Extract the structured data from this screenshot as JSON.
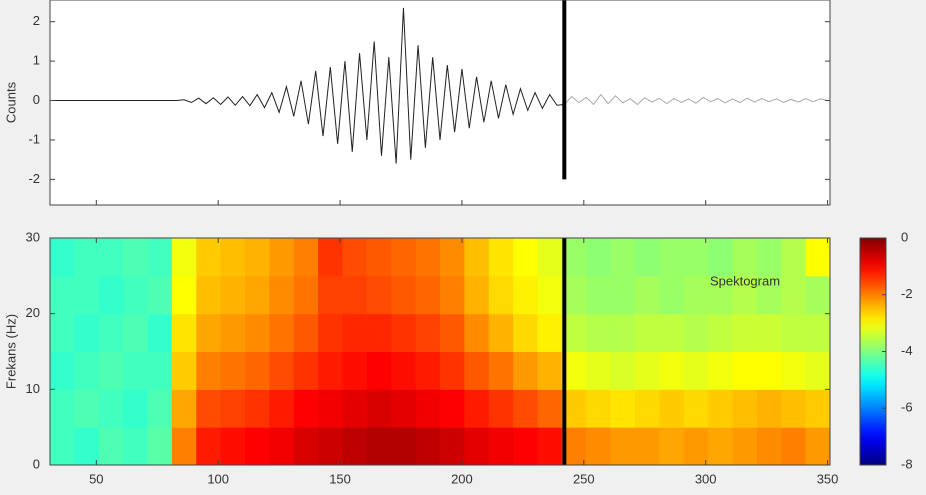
{
  "chart_data": [
    {
      "type": "line",
      "ylabel": "Counts",
      "x": [
        32,
        35,
        38,
        41,
        44,
        47,
        50,
        53,
        56,
        59,
        62,
        65,
        68,
        71,
        74,
        77,
        80,
        83,
        86,
        89,
        92,
        95,
        98,
        101,
        104,
        107,
        110,
        113,
        116,
        119,
        122,
        125,
        128,
        131,
        134,
        137,
        140,
        143,
        146,
        149,
        152,
        155,
        158,
        161,
        164,
        167,
        170,
        173,
        176,
        179,
        182,
        185,
        188,
        191,
        194,
        197,
        200,
        203,
        206,
        209,
        212,
        215,
        218,
        221,
        224,
        227,
        230,
        233,
        236,
        239,
        242,
        245,
        248,
        251,
        254,
        257,
        260,
        263,
        266,
        269,
        272,
        275,
        278,
        281,
        284,
        287,
        290,
        293,
        296,
        299,
        302,
        305,
        308,
        311,
        314,
        317,
        320,
        323,
        326,
        329,
        332,
        335,
        338,
        341,
        344,
        347,
        350
      ],
      "series": [
        {
          "color": "#222222",
          "values": [
            0,
            0,
            0,
            0,
            0,
            0,
            0,
            0,
            0,
            0,
            0,
            0,
            0,
            0,
            0,
            0,
            0,
            0,
            0.02,
            -0.05,
            0.06,
            -0.08,
            0.07,
            -0.1,
            0.09,
            -0.12,
            0.1,
            -0.13,
            0.15,
            -0.18,
            0.2,
            -0.3,
            0.35,
            -0.4,
            0.5,
            -0.6,
            0.75,
            -0.9,
            0.85,
            -1.1,
            1.0,
            -1.3,
            1.2,
            -1.0,
            1.5,
            -1.4,
            1.1,
            -1.6,
            2.35,
            -1.5,
            1.4,
            -1.2,
            1.1,
            -1.0,
            0.9,
            -0.8,
            0.8,
            -0.7,
            0.6,
            -0.55,
            0.5,
            -0.45,
            0.4,
            -0.35,
            0.3,
            -0.25,
            0.2,
            -0.2,
            0.15,
            -0.12,
            -0.1,
            null,
            null,
            null,
            null,
            null,
            null,
            null,
            null,
            null,
            null,
            null,
            null,
            null,
            null,
            null,
            null,
            null,
            null,
            null,
            null,
            null,
            null,
            null,
            null,
            null,
            null,
            null,
            null,
            null,
            null,
            null,
            null,
            null,
            null,
            null,
            null
          ]
        },
        {
          "color": "#aaaaaa",
          "values": [
            null,
            null,
            null,
            null,
            null,
            null,
            null,
            null,
            null,
            null,
            null,
            null,
            null,
            null,
            null,
            null,
            null,
            null,
            null,
            null,
            null,
            null,
            null,
            null,
            null,
            null,
            null,
            null,
            null,
            null,
            null,
            null,
            null,
            null,
            null,
            null,
            null,
            null,
            null,
            null,
            null,
            null,
            null,
            null,
            null,
            null,
            null,
            null,
            null,
            null,
            null,
            null,
            null,
            null,
            null,
            null,
            null,
            null,
            null,
            null,
            null,
            null,
            null,
            null,
            null,
            null,
            null,
            null,
            null,
            null,
            -0.1,
            0.1,
            -0.05,
            0.08,
            -0.1,
            0.15,
            -0.08,
            0.12,
            -0.06,
            0.05,
            -0.1,
            0.07,
            -0.04,
            0.06,
            -0.08,
            0.05,
            -0.05,
            0.04,
            -0.07,
            0.08,
            -0.03,
            0.05,
            -0.06,
            0.04,
            -0.05,
            0.06,
            -0.04,
            0.05,
            -0.03,
            0.04,
            -0.05,
            0.03,
            -0.04,
            0.05,
            -0.03,
            0.04,
            0.0
          ]
        }
      ],
      "xlim": [
        31,
        351
      ],
      "xticks": [
        50,
        100,
        150,
        200,
        250,
        300,
        350
      ],
      "ylim": [
        -2.65,
        2.55
      ],
      "yticks": [
        -2,
        -1,
        0,
        1,
        2
      ],
      "vline": {
        "x": 242,
        "ymin": -2,
        "color": "#000000"
      }
    },
    {
      "type": "heatmap",
      "ylabel": "Frekans (Hz)",
      "annotation": "Spektogram",
      "colormap": "jet",
      "xbins": [
        31,
        41,
        51,
        61,
        71,
        81,
        91,
        101,
        111,
        121,
        131,
        141,
        151,
        161,
        171,
        181,
        191,
        201,
        211,
        221,
        231,
        241,
        251,
        261,
        271,
        281,
        291,
        301,
        311,
        321,
        331,
        341,
        351
      ],
      "ybins": [
        0,
        5,
        10,
        15,
        20,
        25,
        30
      ],
      "z": [
        [
          -4.5,
          -4.6,
          -4.4,
          -4.5,
          -4.3,
          -2.0,
          -1.2,
          -1.1,
          -1.0,
          -0.9,
          -0.7,
          -0.6,
          -0.5,
          -0.4,
          -0.4,
          -0.5,
          -0.6,
          -0.8,
          -0.9,
          -1.0,
          -1.1,
          -2.0,
          -2.1,
          -2.2,
          -2.2,
          -2.3,
          -2.2,
          -2.3,
          -2.2,
          -2.1,
          -2.0,
          -2.2
        ],
        [
          -4.5,
          -4.4,
          -4.5,
          -4.6,
          -4.4,
          -2.3,
          -1.6,
          -1.5,
          -1.4,
          -1.2,
          -1.0,
          -0.9,
          -0.8,
          -0.7,
          -0.8,
          -0.9,
          -1.0,
          -1.2,
          -1.4,
          -1.6,
          -1.8,
          -2.6,
          -2.7,
          -2.8,
          -2.7,
          -2.6,
          -2.7,
          -2.6,
          -2.5,
          -2.4,
          -2.5,
          -2.6
        ],
        [
          -4.6,
          -4.5,
          -4.4,
          -4.5,
          -4.5,
          -2.6,
          -2.0,
          -1.9,
          -1.8,
          -1.6,
          -1.4,
          -1.2,
          -1.1,
          -1.0,
          -1.1,
          -1.2,
          -1.4,
          -1.7,
          -1.9,
          -2.2,
          -2.4,
          -3.1,
          -3.2,
          -3.3,
          -3.2,
          -3.1,
          -3.2,
          -3.1,
          -3.0,
          -3.0,
          -3.1,
          -3.2
        ],
        [
          -4.5,
          -4.6,
          -4.5,
          -4.4,
          -4.6,
          -2.8,
          -2.3,
          -2.2,
          -2.1,
          -1.9,
          -1.7,
          -1.4,
          -1.3,
          -1.3,
          -1.4,
          -1.5,
          -1.7,
          -2.1,
          -2.4,
          -2.7,
          -2.9,
          -3.5,
          -3.6,
          -3.6,
          -3.5,
          -3.5,
          -3.6,
          -3.5,
          -3.4,
          -3.4,
          -3.5,
          -3.5
        ],
        [
          -4.5,
          -4.5,
          -4.6,
          -4.5,
          -4.4,
          -3.0,
          -2.5,
          -2.4,
          -2.3,
          -2.1,
          -1.9,
          -1.5,
          -1.5,
          -1.6,
          -1.7,
          -1.8,
          -2.0,
          -2.4,
          -2.7,
          -2.9,
          -3.1,
          -3.7,
          -3.8,
          -3.8,
          -3.7,
          -3.8,
          -3.7,
          -3.7,
          -3.6,
          -3.7,
          -3.6,
          -3.7
        ],
        [
          -4.6,
          -4.5,
          -4.5,
          -4.4,
          -4.5,
          -3.1,
          -2.6,
          -2.5,
          -2.4,
          -2.2,
          -2.0,
          -1.4,
          -1.6,
          -1.7,
          -1.8,
          -1.9,
          -2.1,
          -2.5,
          -2.8,
          -3.0,
          -3.2,
          -3.8,
          -3.9,
          -3.8,
          -3.9,
          -3.8,
          -3.8,
          -3.9,
          -3.7,
          -3.8,
          -3.6,
          -3.0
        ]
      ],
      "xlim": [
        31,
        351
      ],
      "xticks": [
        50,
        100,
        150,
        200,
        250,
        300,
        350
      ],
      "ylim": [
        0,
        30
      ],
      "yticks": [
        0,
        10,
        20,
        30
      ],
      "clim": [
        -8,
        0
      ],
      "cticks": [
        0,
        -2,
        -4,
        -6,
        -8
      ],
      "vline": {
        "x": 242,
        "color": "#000000"
      }
    }
  ]
}
